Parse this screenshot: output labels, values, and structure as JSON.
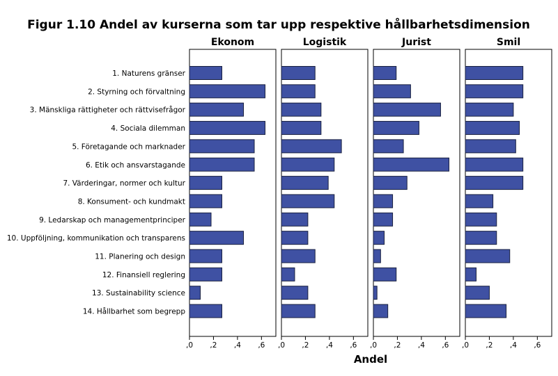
{
  "chart_data": {
    "type": "bar",
    "orientation": "horizontal",
    "title": "Figur 1.10 Andel av kurserna som tar upp respektive hållbarhetsdimension",
    "xlabel": "Andel",
    "xlim": [
      0,
      0.72
    ],
    "xticks": [
      0,
      0.2,
      0.4,
      0.6
    ],
    "xtick_labels": [
      ",0",
      ",2",
      ",4",
      ",6"
    ],
    "bar_color": "#3f51a3",
    "categories": [
      "1. Naturens gränser",
      "2. Styrning och förvaltning",
      "3. Mänskliga rättigheter och rättvisefrågor",
      "4. Sociala dilemman",
      "5. Företagande och marknader",
      "6. Etik och ansvarstagande",
      "7. Värderingar, normer och kultur",
      "8. Konsument- och kundmakt",
      "9. Ledarskap och managementprinciper",
      "10. Uppföljning, kommunikation och transparens",
      "11. Planering och design",
      "12. Finansiell reglering",
      "13. Sustainability science",
      "14. Hållbarhet som begrepp"
    ],
    "series": [
      {
        "name": "Ekonom",
        "values": [
          0.27,
          0.63,
          0.45,
          0.63,
          0.54,
          0.54,
          0.27,
          0.27,
          0.18,
          0.45,
          0.27,
          0.27,
          0.09,
          0.27
        ]
      },
      {
        "name": "Logistik",
        "values": [
          0.28,
          0.28,
          0.33,
          0.33,
          0.5,
          0.44,
          0.39,
          0.44,
          0.22,
          0.22,
          0.28,
          0.11,
          0.22,
          0.28
        ]
      },
      {
        "name": "Jurist",
        "values": [
          0.19,
          0.31,
          0.56,
          0.38,
          0.25,
          0.63,
          0.28,
          0.16,
          0.16,
          0.09,
          0.06,
          0.19,
          0.03,
          0.12
        ]
      },
      {
        "name": "Smil",
        "values": [
          0.48,
          0.48,
          0.4,
          0.45,
          0.42,
          0.48,
          0.48,
          0.23,
          0.26,
          0.26,
          0.37,
          0.09,
          0.2,
          0.34
        ]
      }
    ]
  }
}
